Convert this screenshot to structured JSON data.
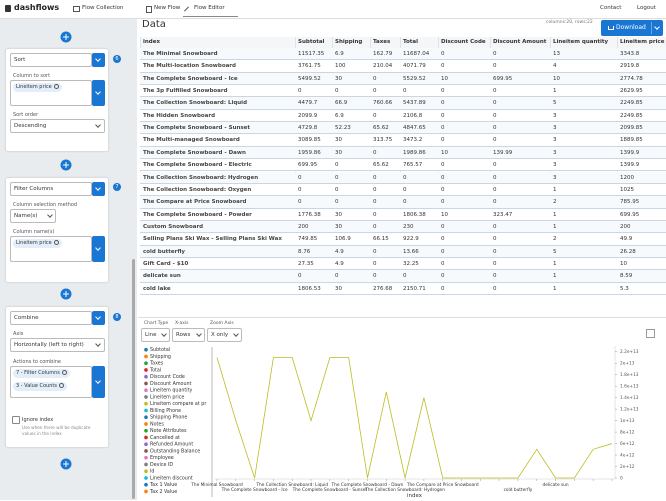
{
  "nav": {
    "logo": "dashflows",
    "tabs": [
      "Flow Collection",
      "New Flow",
      "Flow Editor"
    ],
    "links": [
      "Contact",
      "Logout"
    ]
  },
  "steps": [
    {
      "title": "Sort",
      "badge": "6",
      "fields": [
        {
          "label": "Column to sort",
          "chips": [
            "Lineitem price"
          ]
        },
        {
          "label": "Sort order",
          "select": "Descending"
        }
      ]
    },
    {
      "title": "Filter Columns",
      "badge": "7",
      "fields": [
        {
          "label": "Column selection method",
          "select": "Name(s)"
        },
        {
          "label": "Column name(s)",
          "chips": [
            "Lineitem price"
          ]
        }
      ]
    },
    {
      "title": "Combine",
      "badge": "8",
      "fields": [
        {
          "label": "Axis",
          "select": "Horizontally (left to right)"
        },
        {
          "label": "Actions to combine",
          "chips": [
            "7 - Filter Columns",
            "3 - Value Counts"
          ]
        }
      ],
      "checkbox": "Ignore index",
      "help": "Use when there will be duplicate values in the index"
    }
  ],
  "data_panel": {
    "title": "Data",
    "shape": "columns:20, rows:22",
    "download": "Download",
    "table": {
      "columns": [
        "index",
        "Subtotal",
        "Shipping",
        "Taxes",
        "Total",
        "Discount Code",
        "Discount Amount",
        "Lineitem quantity",
        "Lineitem price"
      ],
      "rows": [
        [
          "The Minimal Snowboard",
          11517.35,
          6.9,
          162.79,
          11687.04,
          0,
          0,
          13,
          3343.8
        ],
        [
          "The Multi-location Snowboard",
          3761.75,
          100,
          210.04,
          4071.79,
          0,
          0,
          4,
          2919.8
        ],
        [
          "The Complete Snowboard - Ice",
          5499.52,
          30,
          0,
          5529.52,
          10,
          699.95,
          10,
          2774.78
        ],
        [
          "The 3p Fulfilled Snowboard",
          0,
          0,
          0,
          0,
          0,
          0,
          1,
          2629.95
        ],
        [
          "The Collection Snowboard: Liquid",
          4479.7,
          66.9,
          760.66,
          5437.89,
          0,
          0,
          5,
          2249.85
        ],
        [
          "The Hidden Snowboard",
          2099.9,
          6.9,
          0,
          2106.8,
          0,
          0,
          3,
          2249.85
        ],
        [
          "The Complete Snowboard - Sunset",
          4729.8,
          52.23,
          65.62,
          4847.65,
          0,
          0,
          3,
          2099.85
        ],
        [
          "The Multi-managed Snowboard",
          3089.85,
          30,
          313.75,
          3473.2,
          0,
          0,
          3,
          1889.85
        ],
        [
          "The Complete Snowboard - Dawn",
          1959.86,
          30,
          0,
          1989.86,
          10,
          139.99,
          3,
          1399.9
        ],
        [
          "The Complete Snowboard - Electric",
          699.95,
          0,
          65.62,
          765.57,
          0,
          0,
          3,
          1399.9
        ],
        [
          "The Collection Snowboard: Hydrogen",
          0,
          0,
          0,
          0,
          0,
          0,
          3,
          1200
        ],
        [
          "The Collection Snowboard: Oxygen",
          0,
          0,
          0,
          0,
          0,
          0,
          1,
          1025
        ],
        [
          "The Compare at Price Snowboard",
          0,
          0,
          0,
          0,
          0,
          0,
          2,
          785.95
        ],
        [
          "The Complete Snowboard - Powder",
          1776.38,
          30,
          0,
          1806.38,
          10,
          323.47,
          1,
          699.95
        ],
        [
          "Custom Snowboard",
          200,
          30,
          0,
          230,
          0,
          0,
          1,
          200
        ],
        [
          "Selling Plans Ski Wax - Selling Plans Ski Wax",
          749.85,
          106.9,
          66.15,
          922.9,
          0,
          0,
          2,
          49.9
        ],
        [
          "cold butterfly",
          8.76,
          4.9,
          0,
          13.66,
          0,
          0,
          5,
          26.28
        ],
        [
          "Gift Card - $10",
          27.35,
          4.9,
          0,
          32.25,
          0,
          0,
          1,
          10
        ],
        [
          "delicate sun",
          0,
          0,
          0,
          0,
          0,
          0,
          1,
          8.59
        ],
        [
          "cold lake",
          1806.53,
          30,
          276.68,
          2150.71,
          0,
          0,
          1,
          5.3
        ]
      ]
    }
  },
  "chart_controls": [
    {
      "label": "Chart Type",
      "value": "Line"
    },
    {
      "label": "X-axis",
      "value": "Rows"
    },
    {
      "label": "Zoom Axis",
      "value": "X only"
    }
  ],
  "chart_data": {
    "type": "line",
    "x_label": "index",
    "categories": [
      "The Minimal Snowboard",
      null,
      "The Complete Snowboard - Ice",
      null,
      "The Collection Snowboard: Liquid",
      null,
      "The Complete Snowboard - Sunset",
      null,
      "The Complete Snowboard - Dawn",
      null,
      "The Collection Snowboard: Hydrogen",
      null,
      "The Compare at Price Snowboard",
      null,
      null,
      null,
      "cold butterfly",
      null,
      "delicate sun",
      null,
      null,
      null
    ],
    "series": [
      {
        "name": "Subtotal",
        "color": "#1f77b4"
      },
      {
        "name": "Shipping",
        "color": "#ff7f0e"
      },
      {
        "name": "Taxes",
        "color": "#2ca02c"
      },
      {
        "name": "Total",
        "color": "#d62728"
      },
      {
        "name": "Discount Code",
        "color": "#9467bd"
      },
      {
        "name": "Discount Amount",
        "color": "#8c564b"
      },
      {
        "name": "Lineitem quantity",
        "color": "#e377c2"
      },
      {
        "name": "Lineitem price",
        "color": "#7f7f7f"
      },
      {
        "name": "Lineitem compare at pr",
        "color": "#bcbd22"
      },
      {
        "name": "Billing Phone",
        "color": "#17becf"
      },
      {
        "name": "Shipping Phone",
        "color": "#1f77b4"
      },
      {
        "name": "Notes",
        "color": "#ff7f0e"
      },
      {
        "name": "Note Attributes",
        "color": "#2ca02c"
      },
      {
        "name": "Cancelled at",
        "color": "#d62728"
      },
      {
        "name": "Refunded Amount",
        "color": "#9467bd"
      },
      {
        "name": "Outstanding Balance",
        "color": "#8c564b"
      },
      {
        "name": "Employee",
        "color": "#e377c2"
      },
      {
        "name": "Device ID",
        "color": "#7f7f7f"
      },
      {
        "name": "Id",
        "color": "#bcbd22",
        "values": [
          21000000000000,
          10000000000000,
          0,
          21000000000000,
          21000000000000,
          10000000000000,
          21000000000000,
          21000000000000,
          0,
          15000000000000,
          0,
          14000000000000,
          0,
          0,
          0,
          0,
          0,
          5000000000000,
          0,
          0,
          5000000000000,
          6000000000000
        ]
      },
      {
        "name": "Lineitem discount",
        "color": "#17becf"
      },
      {
        "name": "Tax 1 Value",
        "color": "#1f77b4"
      },
      {
        "name": "Tax 2 Value",
        "color": "#ff7f0e"
      }
    ],
    "ylim": [
      0,
      23000000000000
    ],
    "yticks": [
      0,
      {
        "value": 2000000000000,
        "label": "2e+12"
      },
      {
        "value": 4000000000000,
        "label": "4e+12"
      },
      {
        "value": 6000000000000,
        "label": "6e+12"
      },
      {
        "value": 8000000000000,
        "label": "8e+12"
      },
      {
        "value": 10000000000000,
        "label": "1e+13"
      },
      {
        "value": 12000000000000,
        "label": "1.2e+13"
      },
      {
        "value": 14000000000000,
        "label": "1.4e+13"
      },
      {
        "value": 16000000000000,
        "label": "1.6e+13"
      },
      {
        "value": 18000000000000,
        "label": "1.8e+13"
      },
      {
        "value": 20000000000000,
        "label": "2e+13"
      },
      {
        "value": 22000000000000,
        "label": "2.2e+13"
      }
    ],
    "y_axis_side": "right",
    "grid": false
  }
}
